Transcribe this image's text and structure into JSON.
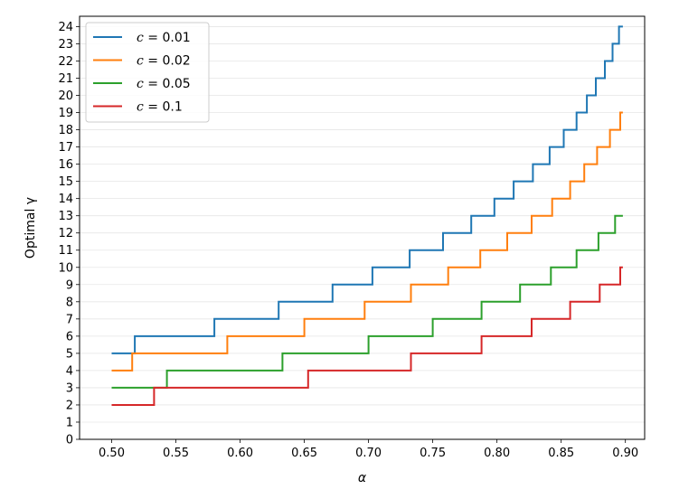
{
  "chart_data": {
    "type": "line",
    "step": true,
    "xlabel": "α",
    "ylabel": "Optimal γ",
    "xlim": [
      0.475,
      0.915
    ],
    "ylim": [
      0,
      24.6
    ],
    "xticks": [
      0.5,
      0.55,
      0.6,
      0.65,
      0.7,
      0.75,
      0.8,
      0.85,
      0.9
    ],
    "xtick_labels": [
      "0.50",
      "0.55",
      "0.60",
      "0.65",
      "0.70",
      "0.75",
      "0.80",
      "0.85",
      "0.90"
    ],
    "yticks": [
      0,
      1,
      2,
      3,
      4,
      5,
      6,
      7,
      8,
      9,
      10,
      11,
      12,
      13,
      14,
      15,
      16,
      17,
      18,
      19,
      20,
      21,
      22,
      23,
      24
    ],
    "ytick_labels": [
      "0",
      "1",
      "2",
      "3",
      "4",
      "5",
      "6",
      "7",
      "8",
      "9",
      "10",
      "11",
      "12",
      "13",
      "14",
      "15",
      "16",
      "17",
      "18",
      "19",
      "20",
      "21",
      "22",
      "23",
      "24"
    ],
    "grid": "horizontal",
    "legend_position": "top-left",
    "series": [
      {
        "name": "c = 0.01",
        "legend_var": "c",
        "legend_value": "0.01",
        "color": "#1f77b4",
        "start": [
          0.5,
          5
        ],
        "end_x": 0.898,
        "steps": [
          [
            0.518,
            6
          ],
          [
            0.58,
            7
          ],
          [
            0.63,
            8
          ],
          [
            0.672,
            9
          ],
          [
            0.703,
            10
          ],
          [
            0.732,
            11
          ],
          [
            0.758,
            12
          ],
          [
            0.78,
            13
          ],
          [
            0.798,
            14
          ],
          [
            0.813,
            15
          ],
          [
            0.828,
            16
          ],
          [
            0.841,
            17
          ],
          [
            0.852,
            18
          ],
          [
            0.862,
            19
          ],
          [
            0.87,
            20
          ],
          [
            0.877,
            21
          ],
          [
            0.884,
            22
          ],
          [
            0.89,
            23
          ],
          [
            0.895,
            24
          ]
        ]
      },
      {
        "name": "c = 0.02",
        "legend_var": "c",
        "legend_value": "0.02",
        "color": "#ff7f0e",
        "start": [
          0.5,
          4
        ],
        "end_x": 0.898,
        "steps": [
          [
            0.516,
            5
          ],
          [
            0.59,
            6
          ],
          [
            0.65,
            7
          ],
          [
            0.697,
            8
          ],
          [
            0.733,
            9
          ],
          [
            0.762,
            10
          ],
          [
            0.787,
            11
          ],
          [
            0.808,
            12
          ],
          [
            0.827,
            13
          ],
          [
            0.843,
            14
          ],
          [
            0.857,
            15
          ],
          [
            0.868,
            16
          ],
          [
            0.878,
            17
          ],
          [
            0.888,
            18
          ],
          [
            0.896,
            19
          ]
        ]
      },
      {
        "name": "c = 0.05",
        "legend_var": "c",
        "legend_value": "0.05",
        "color": "#2ca02c",
        "start": [
          0.5,
          3
        ],
        "end_x": 0.898,
        "steps": [
          [
            0.543,
            4
          ],
          [
            0.633,
            5
          ],
          [
            0.7,
            6
          ],
          [
            0.75,
            7
          ],
          [
            0.788,
            8
          ],
          [
            0.818,
            9
          ],
          [
            0.842,
            10
          ],
          [
            0.862,
            11
          ],
          [
            0.879,
            12
          ],
          [
            0.892,
            13
          ]
        ]
      },
      {
        "name": "c = 0.1",
        "legend_var": "c",
        "legend_value": "0.1",
        "color": "#d62728",
        "start": [
          0.5,
          2
        ],
        "end_x": 0.898,
        "steps": [
          [
            0.533,
            3
          ],
          [
            0.653,
            4
          ],
          [
            0.733,
            5
          ],
          [
            0.788,
            6
          ],
          [
            0.827,
            7
          ],
          [
            0.857,
            8
          ],
          [
            0.88,
            9
          ],
          [
            0.896,
            10
          ]
        ]
      }
    ]
  }
}
